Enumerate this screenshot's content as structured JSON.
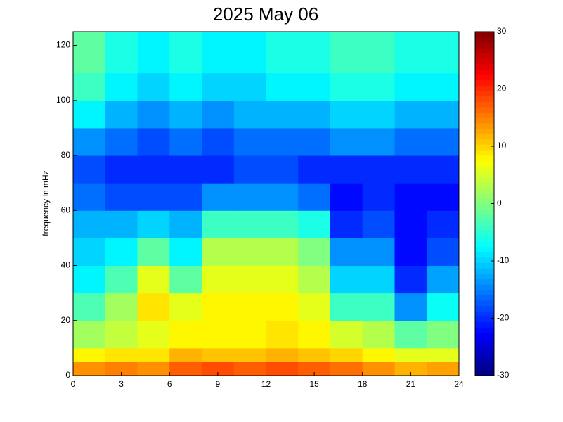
{
  "chart_data": {
    "type": "heatmap",
    "title": "2025 May 06",
    "y_label": "frequency in mHz",
    "xlim": [
      0,
      24
    ],
    "xticks": [
      0,
      3,
      6,
      9,
      12,
      15,
      18,
      21,
      24
    ],
    "ylim": [
      0,
      125
    ],
    "yticks": [
      0,
      20,
      40,
      60,
      80,
      100,
      120
    ],
    "x_edges": [
      0,
      2,
      4,
      6,
      8,
      10,
      12,
      14,
      16,
      18,
      20,
      22,
      24
    ],
    "y_edges": [
      0,
      5,
      10,
      20,
      30,
      40,
      50,
      60,
      70,
      80,
      90,
      100,
      110,
      125
    ],
    "colormap": "jet",
    "clim": [
      -30,
      30
    ],
    "cticks": [
      -30,
      -20,
      -10,
      0,
      10,
      20,
      30
    ],
    "z": [
      [
        14,
        15,
        14,
        17,
        18,
        17,
        18,
        17,
        16,
        14,
        12,
        13
      ],
      [
        8,
        9,
        9,
        12,
        11,
        11,
        12,
        11,
        10,
        8,
        6,
        6
      ],
      [
        2,
        4,
        6,
        8,
        8,
        8,
        9,
        8,
        5,
        3,
        -2,
        0
      ],
      [
        -3,
        2,
        9,
        6,
        8,
        8,
        8,
        6,
        -4,
        -4,
        -14,
        -7
      ],
      [
        -8,
        -3,
        6,
        -2,
        6,
        6,
        6,
        3,
        -10,
        -10,
        -20,
        -13
      ],
      [
        -10,
        -8,
        -2,
        -8,
        3,
        3,
        3,
        0,
        -14,
        -14,
        -22,
        -18
      ],
      [
        -12,
        -12,
        -10,
        -12,
        -4,
        -4,
        -4,
        -6,
        -20,
        -18,
        -22,
        -20
      ],
      [
        -16,
        -18,
        -18,
        -18,
        -14,
        -14,
        -14,
        -16,
        -22,
        -20,
        -22,
        -22
      ],
      [
        -18,
        -20,
        -20,
        -20,
        -20,
        -18,
        -18,
        -20,
        -20,
        -20,
        -20,
        -20
      ],
      [
        -14,
        -16,
        -18,
        -16,
        -18,
        -16,
        -16,
        -16,
        -14,
        -14,
        -16,
        -16
      ],
      [
        -8,
        -12,
        -14,
        -12,
        -14,
        -12,
        -12,
        -12,
        -10,
        -10,
        -12,
        -12
      ],
      [
        -4,
        -8,
        -10,
        -8,
        -10,
        -10,
        -8,
        -8,
        -6,
        -6,
        -8,
        -8
      ],
      [
        -2,
        -6,
        -8,
        -6,
        -8,
        -8,
        -6,
        -6,
        -4,
        -4,
        -6,
        -6
      ]
    ]
  }
}
